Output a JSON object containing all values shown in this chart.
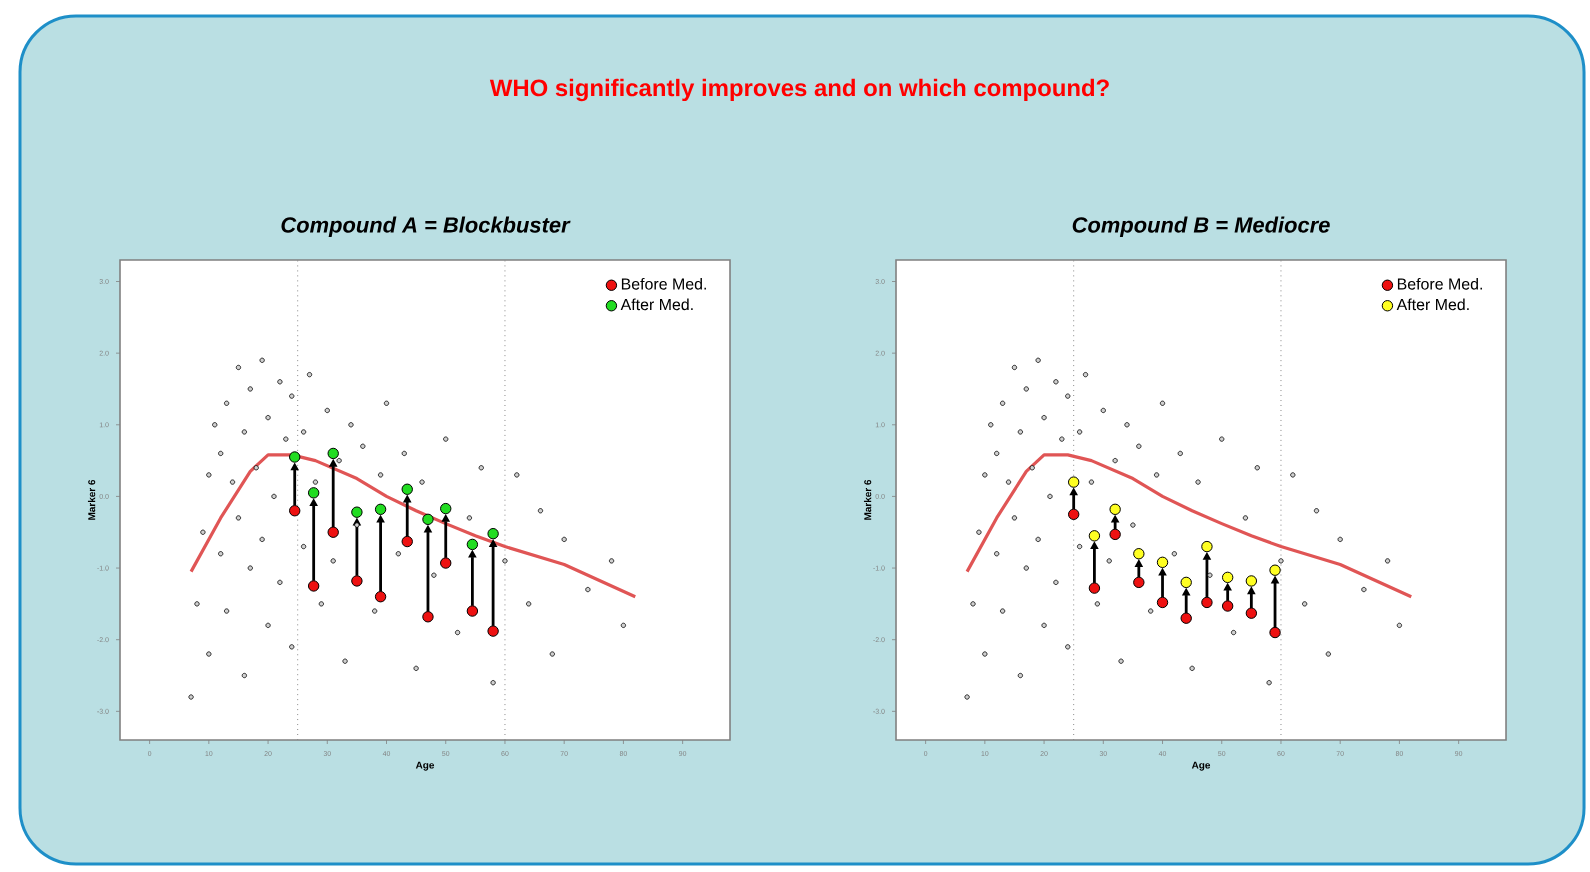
{
  "chart_data": [
    {
      "type": "scatter",
      "title": "Compound A = Blockbuster",
      "xlabel": "Age",
      "ylabel": "Marker 6",
      "annotations": [
        "WHO significantly improves and on which compound?"
      ],
      "xlim": [
        -5,
        98
      ],
      "ylim": [
        -3.4,
        3.3
      ],
      "xticks": [
        0,
        10,
        20,
        30,
        40,
        50,
        60,
        70,
        80,
        90
      ],
      "yticks": [
        {
          "value": -3,
          "label": "-3.0"
        },
        {
          "value": -2,
          "label": "-2.0"
        },
        {
          "value": -1,
          "label": "-1.0"
        },
        {
          "value": 0,
          "label": "0.0"
        },
        {
          "value": 1,
          "label": "1.0"
        },
        {
          "value": 2,
          "label": "2.0"
        },
        {
          "value": 3,
          "label": "3.0"
        }
      ],
      "ref_lines": [
        {
          "axis": "x",
          "value": 25,
          "color": "#888888",
          "line_style": "dotted"
        },
        {
          "axis": "x",
          "value": 60,
          "color": "#888888",
          "line_style": "dotted"
        }
      ],
      "legend": "top right",
      "marker": "circle",
      "series": [
        {
          "color": "#d0d0d0",
          "x": [
            7,
            8,
            9,
            10,
            10,
            11,
            12,
            12,
            13,
            13,
            14,
            15,
            15,
            16,
            16,
            17,
            17,
            18,
            19,
            19,
            20,
            20,
            21,
            22,
            22,
            23,
            24,
            24,
            26,
            26,
            27,
            28,
            29,
            30,
            31,
            32,
            33,
            34,
            35,
            36,
            38,
            39,
            40,
            42,
            43,
            45,
            46,
            48,
            50,
            52,
            54,
            56,
            58,
            60,
            62,
            64,
            66,
            68,
            70,
            74,
            78,
            80
          ],
          "values": [
            -2.8,
            -1.5,
            -0.5,
            0.3,
            -2.2,
            1.0,
            -0.8,
            0.6,
            1.3,
            -1.6,
            0.2,
            1.8,
            -0.3,
            0.9,
            -2.5,
            1.5,
            -1.0,
            0.4,
            1.9,
            -0.6,
            1.1,
            -1.8,
            0.0,
            1.6,
            -1.2,
            0.8,
            1.4,
            -2.1,
            0.9,
            -0.7,
            1.7,
            0.2,
            -1.5,
            1.2,
            -0.9,
            0.5,
            -2.3,
            1.0,
            -0.4,
            0.7,
            -1.6,
            0.3,
            1.3,
            -0.8,
            0.6,
            -2.4,
            0.2,
            -1.1,
            0.8,
            -1.9,
            -0.3,
            0.4,
            -2.6,
            -0.9,
            0.3,
            -1.5,
            -0.2,
            -2.2,
            -0.6,
            -1.3,
            -0.9,
            -1.8
          ]
        },
        {
          "type": "line",
          "marker": "none",
          "color": "#e05555",
          "x": [
            7,
            12,
            17,
            20,
            24,
            28,
            35,
            40,
            45,
            50,
            55,
            60,
            70,
            82
          ],
          "values": [
            -1.05,
            -0.3,
            0.35,
            0.58,
            0.58,
            0.5,
            0.25,
            0.0,
            -0.2,
            -0.38,
            -0.55,
            -0.7,
            -0.95,
            -1.4
          ]
        },
        {
          "name": "Before Med.",
          "color": "#ee1111",
          "x": [
            24.5,
            27.7,
            31,
            35,
            39,
            43.5,
            47,
            50,
            54.5,
            58
          ],
          "values": [
            -0.2,
            -1.25,
            -0.5,
            -1.18,
            -1.4,
            -0.63,
            -1.68,
            -0.93,
            -1.6,
            -1.88
          ]
        },
        {
          "name": "After Med.",
          "color": "#22dd22",
          "x": [
            24.5,
            27.7,
            31,
            35,
            39,
            43.5,
            47,
            50,
            54.5,
            58
          ],
          "values": [
            0.55,
            0.05,
            0.6,
            -0.22,
            -0.18,
            0.1,
            -0.32,
            -0.17,
            -0.67,
            -0.52
          ]
        }
      ]
    },
    {
      "type": "scatter",
      "title": "Compound B = Mediocre",
      "xlabel": "Age",
      "ylabel": "Marker 6",
      "xlim": [
        -5,
        98
      ],
      "ylim": [
        -3.4,
        3.3
      ],
      "xticks": [
        0,
        10,
        20,
        30,
        40,
        50,
        60,
        70,
        80,
        90
      ],
      "yticks": [
        {
          "value": -3,
          "label": "-3.0"
        },
        {
          "value": -2,
          "label": "-2.0"
        },
        {
          "value": -1,
          "label": "-1.0"
        },
        {
          "value": 0,
          "label": "0.0"
        },
        {
          "value": 1,
          "label": "1.0"
        },
        {
          "value": 2,
          "label": "2.0"
        },
        {
          "value": 3,
          "label": "3.0"
        }
      ],
      "ref_lines": [
        {
          "axis": "x",
          "value": 25,
          "color": "#888888",
          "line_style": "dotted"
        },
        {
          "axis": "x",
          "value": 60,
          "color": "#888888",
          "line_style": "dotted"
        }
      ],
      "legend": "top right",
      "marker": "circle",
      "series": [
        {
          "color": "#d0d0d0",
          "x": [
            7,
            8,
            9,
            10,
            10,
            11,
            12,
            12,
            13,
            13,
            14,
            15,
            15,
            16,
            16,
            17,
            17,
            18,
            19,
            19,
            20,
            20,
            21,
            22,
            22,
            23,
            24,
            24,
            26,
            26,
            27,
            28,
            29,
            30,
            31,
            32,
            33,
            34,
            35,
            36,
            38,
            39,
            40,
            42,
            43,
            45,
            46,
            48,
            50,
            52,
            54,
            56,
            58,
            60,
            62,
            64,
            66,
            68,
            70,
            74,
            78,
            80
          ],
          "values": [
            -2.8,
            -1.5,
            -0.5,
            0.3,
            -2.2,
            1.0,
            -0.8,
            0.6,
            1.3,
            -1.6,
            0.2,
            1.8,
            -0.3,
            0.9,
            -2.5,
            1.5,
            -1.0,
            0.4,
            1.9,
            -0.6,
            1.1,
            -1.8,
            0.0,
            1.6,
            -1.2,
            0.8,
            1.4,
            -2.1,
            0.9,
            -0.7,
            1.7,
            0.2,
            -1.5,
            1.2,
            -0.9,
            0.5,
            -2.3,
            1.0,
            -0.4,
            0.7,
            -1.6,
            0.3,
            1.3,
            -0.8,
            0.6,
            -2.4,
            0.2,
            -1.1,
            0.8,
            -1.9,
            -0.3,
            0.4,
            -2.6,
            -0.9,
            0.3,
            -1.5,
            -0.2,
            -2.2,
            -0.6,
            -1.3,
            -0.9,
            -1.8
          ]
        },
        {
          "type": "line",
          "marker": "none",
          "color": "#e05555",
          "x": [
            7,
            12,
            17,
            20,
            24,
            28,
            35,
            40,
            45,
            50,
            55,
            60,
            70,
            82
          ],
          "values": [
            -1.05,
            -0.3,
            0.35,
            0.58,
            0.58,
            0.5,
            0.25,
            0.0,
            -0.2,
            -0.38,
            -0.55,
            -0.7,
            -0.95,
            -1.4
          ]
        },
        {
          "name": "Before Med.",
          "color": "#ee1111",
          "x": [
            25,
            28.5,
            32,
            36,
            40,
            44,
            47.5,
            51,
            55,
            59
          ],
          "values": [
            -0.25,
            -1.28,
            -0.53,
            -1.2,
            -1.48,
            -1.7,
            -1.48,
            -1.53,
            -1.63,
            -1.9
          ]
        },
        {
          "name": "After Med.",
          "color": "#ffff22",
          "x": [
            25,
            28.5,
            32,
            36,
            40,
            44,
            47.5,
            51,
            55,
            59
          ],
          "values": [
            0.2,
            -0.55,
            -0.18,
            -0.8,
            -0.92,
            -1.2,
            -0.7,
            -1.13,
            -1.18,
            -1.03
          ]
        }
      ]
    }
  ]
}
